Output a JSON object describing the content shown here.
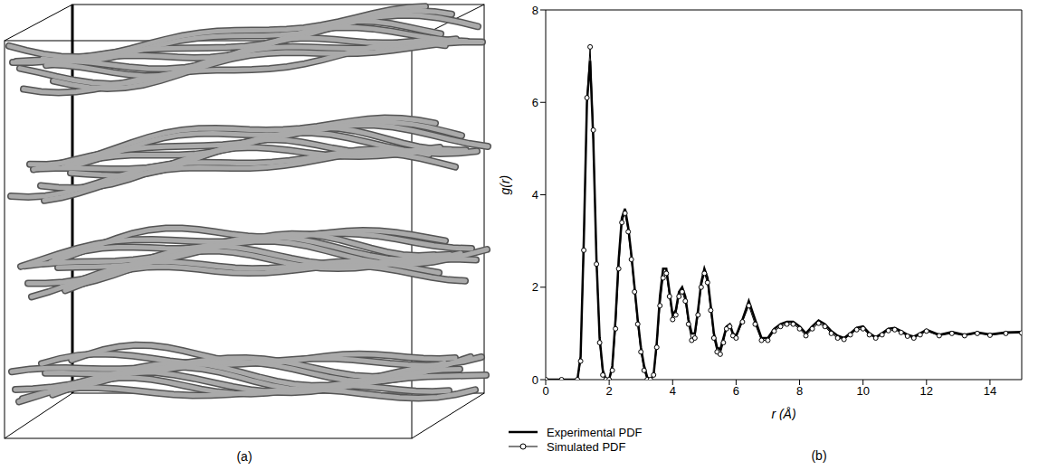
{
  "chart_data": [
    {
      "type": "image",
      "label": "(a)"
    },
    {
      "type": "line",
      "label": "(b)",
      "xlabel": "r (Å)",
      "ylabel": "g(r)",
      "xlim": [
        0,
        15
      ],
      "xticks": [
        0,
        2,
        4,
        6,
        8,
        10,
        12,
        14
      ],
      "ylim": [
        0,
        8
      ],
      "yticks": [
        0,
        2,
        4,
        6,
        8
      ],
      "grid": false,
      "legend": "bottom left",
      "x": [
        0,
        0.5,
        1.0,
        1.1,
        1.2,
        1.3,
        1.4,
        1.5,
        1.6,
        1.7,
        1.8,
        1.9,
        2.0,
        2.1,
        2.2,
        2.3,
        2.4,
        2.5,
        2.6,
        2.7,
        2.8,
        2.9,
        3.0,
        3.1,
        3.2,
        3.3,
        3.4,
        3.5,
        3.6,
        3.7,
        3.8,
        3.9,
        4.0,
        4.1,
        4.2,
        4.3,
        4.4,
        4.5,
        4.6,
        4.7,
        4.8,
        4.9,
        5.0,
        5.1,
        5.2,
        5.3,
        5.4,
        5.5,
        5.6,
        5.7,
        5.8,
        5.9,
        6.0,
        6.2,
        6.4,
        6.6,
        6.8,
        7.0,
        7.2,
        7.4,
        7.6,
        7.8,
        8.0,
        8.2,
        8.4,
        8.6,
        8.8,
        9.0,
        9.2,
        9.4,
        9.6,
        9.8,
        10.0,
        10.2,
        10.4,
        10.6,
        10.8,
        11.0,
        11.2,
        11.4,
        11.6,
        11.8,
        12.0,
        12.4,
        12.8,
        13.2,
        13.6,
        14.0,
        14.5,
        15.0
      ],
      "series": [
        {
          "name": "Experimental PDF",
          "color": "#000000",
          "line_style": "solid",
          "marker": "none",
          "values": [
            0,
            0,
            0,
            0.5,
            3.0,
            6.0,
            6.9,
            5.2,
            2.6,
            0.9,
            0.2,
            0,
            0,
            0.3,
            1.3,
            2.6,
            3.5,
            3.7,
            3.3,
            2.7,
            2.0,
            1.3,
            0.7,
            0.3,
            0.05,
            0,
            0.1,
            0.8,
            1.8,
            2.4,
            2.4,
            1.9,
            1.4,
            1.5,
            1.9,
            2.0,
            1.8,
            1.3,
            1.0,
            1.0,
            1.5,
            2.1,
            2.4,
            2.2,
            1.6,
            1.0,
            0.7,
            0.65,
            0.9,
            1.15,
            1.2,
            1.0,
            0.95,
            1.3,
            1.7,
            1.3,
            0.9,
            0.9,
            1.1,
            1.2,
            1.25,
            1.25,
            1.15,
            1.0,
            1.15,
            1.28,
            1.2,
            1.05,
            0.95,
            0.9,
            1.0,
            1.12,
            1.15,
            1.0,
            0.92,
            1.0,
            1.1,
            1.12,
            1.05,
            0.97,
            0.93,
            1.0,
            1.08,
            0.97,
            1.03,
            0.97,
            1.02,
            0.98,
            1.02,
            1.03
          ]
        },
        {
          "name": "Simulated PDF",
          "color": "#000000",
          "line_style": "solid",
          "marker": "o",
          "values": [
            0,
            0,
            0,
            0.4,
            2.8,
            6.1,
            7.2,
            5.4,
            2.5,
            0.8,
            0.1,
            0,
            0,
            0.2,
            1.1,
            2.4,
            3.4,
            3.6,
            3.2,
            2.6,
            1.9,
            1.2,
            0.6,
            0.2,
            0,
            0,
            0.1,
            0.7,
            1.6,
            2.2,
            2.3,
            1.8,
            1.3,
            1.4,
            1.8,
            1.9,
            1.7,
            1.2,
            0.85,
            0.9,
            1.4,
            2.0,
            2.3,
            2.1,
            1.5,
            0.9,
            0.6,
            0.55,
            0.8,
            1.1,
            1.15,
            0.95,
            0.9,
            1.25,
            1.6,
            1.2,
            0.85,
            0.85,
            1.05,
            1.15,
            1.2,
            1.2,
            1.1,
            0.95,
            1.1,
            1.22,
            1.15,
            1.0,
            0.9,
            0.87,
            0.97,
            1.08,
            1.1,
            0.97,
            0.9,
            0.97,
            1.06,
            1.08,
            1.02,
            0.94,
            0.9,
            0.97,
            1.05,
            0.95,
            1.0,
            0.95,
            1.0,
            0.96,
            1.0,
            1.01
          ]
        }
      ]
    }
  ]
}
